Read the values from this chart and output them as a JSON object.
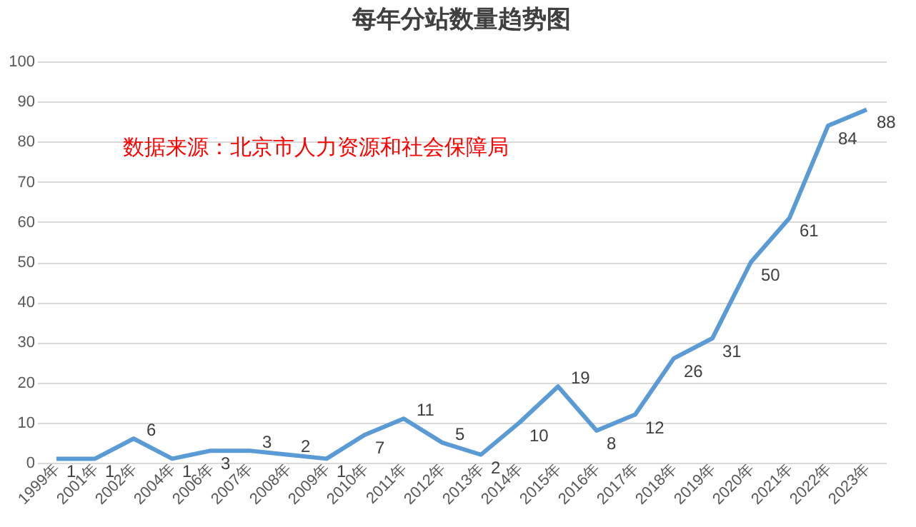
{
  "chart_data": {
    "type": "line",
    "title": "每年分站数量趋势图",
    "categories": [
      "1999年",
      "2001年",
      "2002年",
      "2004年",
      "2006年",
      "2007年",
      "2008年",
      "2009年",
      "2010年",
      "2011年",
      "2012年",
      "2013年",
      "2014年",
      "2015年",
      "2016年",
      "2017年",
      "2018年",
      "2019年",
      "2020年",
      "2021年",
      "2022年",
      "2023年"
    ],
    "series": [
      {
        "color": "#5b9bd5",
        "values": [
          1,
          1,
          6,
          1,
          3,
          3,
          2,
          1,
          7,
          11,
          5,
          2,
          10,
          19,
          8,
          12,
          26,
          31,
          50,
          61,
          84,
          88
        ]
      }
    ],
    "ylim": [
      0,
      100
    ],
    "yticks": [
      0,
      10,
      20,
      30,
      40,
      50,
      60,
      70,
      80,
      90,
      100
    ],
    "grid": "y",
    "data_labels": true,
    "marker": "none",
    "line_style": "solid",
    "annotations": [
      "数据来源：北京市人力资源和社会保障局"
    ]
  }
}
